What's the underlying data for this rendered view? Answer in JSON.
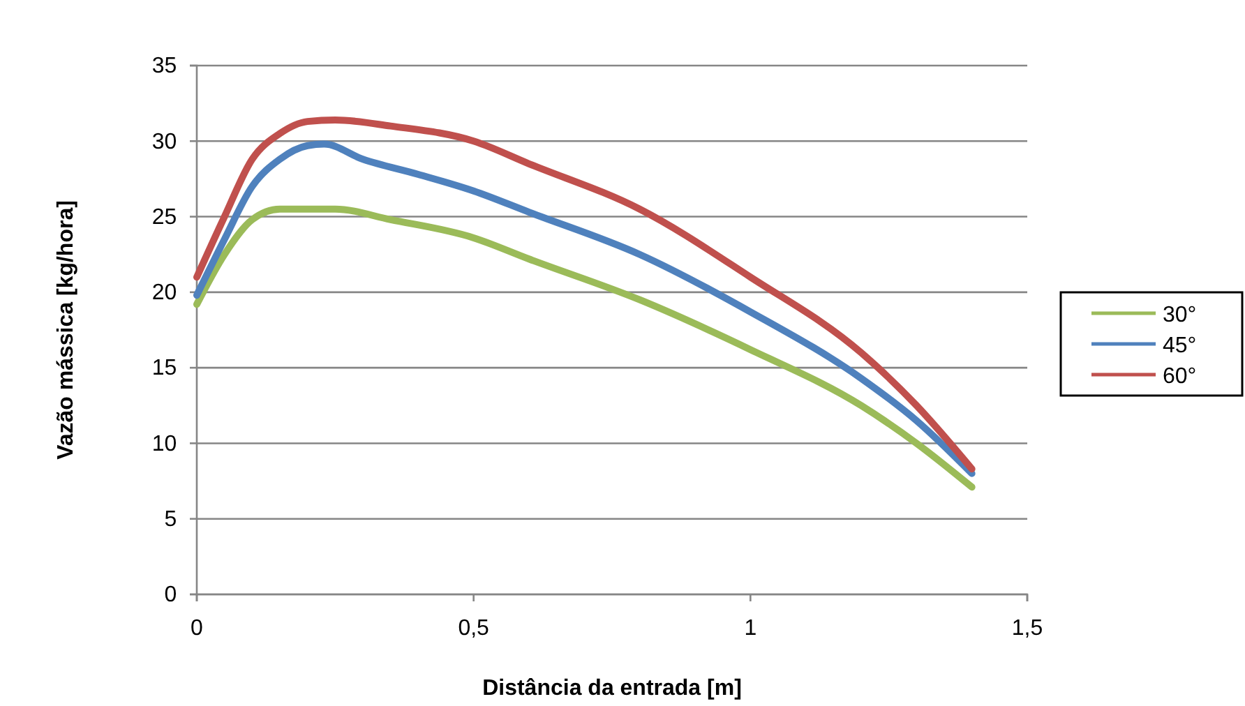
{
  "chart_data": {
    "type": "line",
    "xlabel": "Distância da entrada [m]",
    "ylabel": "Vazão mássica [kg/hora]",
    "xlim": [
      0,
      1.5
    ],
    "xticks": [
      0,
      {
        "value": 0.5,
        "label": "0,5"
      },
      1,
      {
        "value": 1.5,
        "label": "1,5"
      }
    ],
    "ylim": [
      0,
      35
    ],
    "yticks": [
      0,
      5,
      10,
      15,
      20,
      25,
      30,
      35
    ],
    "grid": "y",
    "legend": "right",
    "marker": "none",
    "line_style": "solid",
    "series": [
      {
        "name": "30°",
        "color": "#9bbb59",
        "x": [
          0,
          0.05,
          0.1,
          0.15,
          0.25,
          0.35,
          0.5,
          0.6,
          0.8,
          1.0,
          1.2,
          1.3,
          1.4
        ],
        "values": [
          19.2,
          22.5,
          24.8,
          25.5,
          25.5,
          24.8,
          23.6,
          22.2,
          19.5,
          16.2,
          12.5,
          10.0,
          7.1
        ]
      },
      {
        "name": "45°",
        "color": "#4f81bd",
        "x": [
          0,
          0.05,
          0.1,
          0.15,
          0.2,
          0.23,
          0.3,
          0.4,
          0.5,
          0.6,
          0.8,
          1.0,
          1.2,
          1.3,
          1.4
        ],
        "values": [
          19.8,
          23.5,
          27.0,
          28.8,
          29.7,
          29.8,
          28.8,
          27.8,
          26.7,
          25.3,
          22.5,
          18.7,
          14.3,
          11.5,
          8.0
        ]
      },
      {
        "name": "60°",
        "color": "#c0504d",
        "x": [
          0,
          0.05,
          0.1,
          0.15,
          0.2,
          0.25,
          0.35,
          0.5,
          0.6,
          0.8,
          1.0,
          1.2,
          1.3,
          1.4
        ],
        "values": [
          21,
          25,
          28.8,
          30.5,
          31.3,
          31.4,
          31.0,
          30.0,
          28.5,
          25.5,
          21.0,
          16.0,
          12.5,
          8.3
        ]
      }
    ]
  }
}
